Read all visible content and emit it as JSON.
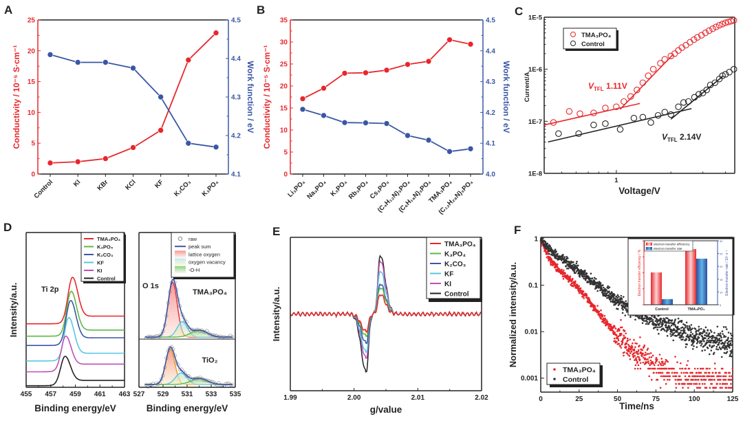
{
  "chart_data": [
    {
      "panel": "A",
      "type": "line",
      "categories": [
        "Control",
        "KI",
        "KBr",
        "KCl",
        "KF",
        "K₂CO₃",
        "K₃PO₄"
      ],
      "ylabel": "Conductivity / 10⁻⁵ S·cm⁻¹",
      "ylim": [
        0,
        25
      ],
      "yticks": [
        "0",
        "5",
        "10",
        "15",
        "20",
        "25"
      ],
      "y2label": "Work function / eV",
      "y2lim": [
        4.1,
        4.5
      ],
      "y2ticks": [
        "4.1",
        "4.2",
        "4.3",
        "4.4",
        "4.5"
      ],
      "series": [
        {
          "axis": "left",
          "color": "#e8262b",
          "values": [
            1.8,
            2.0,
            2.5,
            4.3,
            7.1,
            18.5,
            22.9
          ]
        },
        {
          "axis": "right",
          "color": "#3a56a5",
          "values": [
            4.41,
            4.39,
            4.39,
            4.375,
            4.3,
            4.18,
            4.17
          ]
        }
      ]
    },
    {
      "panel": "B",
      "type": "line",
      "categories": [
        "Li₃PO₄",
        "Na₃PO₄",
        "K₃PO₄",
        "Rb₃PO₄",
        "Cs₃PO₄",
        "(C₄H₁₂N)₃PO₄",
        "(C₆H₁₆N)₃PO₄",
        "TMA₃PO₄",
        "(C₁₂H₂₈N)₃PO₄"
      ],
      "ylabel": "Conductivity / 10⁻⁵ S·cm⁻¹",
      "ylim": [
        0,
        35
      ],
      "yticks": [
        "0",
        "5",
        "10",
        "15",
        "20",
        "25",
        "30",
        "35"
      ],
      "y2label": "Work function / eV",
      "y2lim": [
        4.0,
        4.5
      ],
      "y2ticks": [
        "4.0",
        "4.1",
        "4.2",
        "4.3",
        "4.4",
        "4.5"
      ],
      "series": [
        {
          "axis": "left",
          "color": "#e8262b",
          "values": [
            17.1,
            19.5,
            22.9,
            23.0,
            23.6,
            24.9,
            25.6,
            30.5,
            29.5
          ]
        },
        {
          "axis": "right",
          "color": "#3a56a5",
          "values": [
            4.21,
            4.19,
            4.167,
            4.166,
            4.164,
            4.125,
            4.11,
            4.073,
            4.082
          ]
        }
      ]
    },
    {
      "panel": "C",
      "type": "scatter",
      "xscale": "log",
      "yscale": "log",
      "xlabel": "Voltage/V",
      "ylabel": "Current/A",
      "xlim": [
        0.4,
        4.5
      ],
      "xticks": [
        "1"
      ],
      "ylim": [
        1e-08,
        1e-05
      ],
      "yticks": [
        "1E-8",
        "1E-7",
        "1E-6",
        "1E-5"
      ],
      "legend_position": "top-left",
      "series": [
        {
          "name": "TMA₃PO₄",
          "color": "#e8262b",
          "x": [
            0.45,
            0.55,
            0.63,
            0.75,
            0.87,
            1.0,
            1.1,
            1.2,
            1.3,
            1.4,
            1.5,
            1.6,
            1.75,
            1.85,
            2.0,
            2.1,
            2.2,
            2.3,
            2.42,
            2.55,
            2.68,
            2.8,
            2.95,
            3.1,
            3.25,
            3.4,
            3.55,
            3.7,
            3.85,
            4.0,
            4.15,
            4.3,
            4.45
          ],
          "y": [
            9.5e-08,
            1.55e-07,
            1.4e-07,
            1.45e-07,
            1.8e-07,
            1.9e-07,
            2.4e-07,
            3e-07,
            4e-07,
            5.5e-07,
            7.5e-07,
            1e-06,
            1.3e-06,
            1.55e-06,
            1.8e-06,
            2e-06,
            2.3e-06,
            2.6e-06,
            2.9e-06,
            3.3e-06,
            3.7e-06,
            4.1e-06,
            4.5e-06,
            5e-06,
            5.5e-06,
            6e-06,
            6.5e-06,
            7e-06,
            7.4e-06,
            7.8e-06,
            8.1e-06,
            8.4e-06,
            8.7e-06
          ]
        },
        {
          "name": "Control",
          "color": "#222222",
          "x": [
            0.48,
            0.62,
            0.75,
            0.87,
            1.05,
            1.25,
            1.4,
            1.55,
            1.7,
            1.85,
            2.0,
            2.2,
            2.35,
            2.5,
            2.7,
            2.85,
            3.0,
            3.15,
            3.3,
            3.5,
            3.7,
            3.85,
            4.0,
            4.2,
            4.45
          ],
          "y": [
            5.8e-08,
            5.8e-08,
            8.5e-08,
            9e-08,
            7e-08,
            1.15e-07,
            1.2e-07,
            9.5e-08,
            1.3e-07,
            1.5e-07,
            1.35e-07,
            1.9e-07,
            2.3e-07,
            2.4e-07,
            2.9e-07,
            3.3e-07,
            3.5e-07,
            4e-07,
            5e-07,
            5.5e-07,
            6.5e-07,
            7.5e-07,
            8e-07,
            8.8e-07,
            1e-06
          ]
        }
      ],
      "fits": [
        {
          "color": "#e8262b",
          "x": [
            0.4,
            1.35
          ],
          "y": [
            8.5e-08,
            2.2e-07
          ]
        },
        {
          "color": "#e8262b",
          "x": [
            1.05,
            2.05
          ],
          "y": [
            1.7e-07,
            1.9e-06
          ]
        },
        {
          "color": "#222222",
          "x": [
            0.42,
            2.6
          ],
          "y": [
            4e-08,
            1.75e-07
          ]
        },
        {
          "color": "#222222",
          "x": [
            2.0,
            3.9
          ],
          "y": [
            1.1e-07,
            7.5e-07
          ]
        }
      ],
      "annotations": [
        {
          "v": "V",
          "sub": "TFL",
          "val": " 1.11V",
          "color": "#e8262b"
        },
        {
          "v": "V",
          "sub": "TFL",
          "val": " 2.14V",
          "color": "#222222"
        }
      ]
    },
    {
      "panel": "D",
      "type": "line",
      "title": "Ti 2p",
      "xlabel": "Binding energy/eV",
      "ylabel": "Intensity/a.u.",
      "xlim": [
        455,
        463
      ],
      "xticks": [
        "455",
        "457",
        "459",
        "461",
        "463"
      ],
      "legend_position": "top-right",
      "series": [
        {
          "name": "TMA₃PO₄",
          "color": "#e8262b",
          "center": 458.75,
          "baseline_start": 41,
          "baseline_end": 46,
          "peak_intensity": 71
        },
        {
          "name": "K₃PO₄",
          "color": "#5bb947",
          "center": 458.65,
          "baseline_start": 33,
          "baseline_end": 37,
          "peak_intensity": 62
        },
        {
          "name": "K₂CO₃",
          "color": "#3a56a5",
          "center": 458.6,
          "baseline_start": 27,
          "baseline_end": 32,
          "peak_intensity": 56
        },
        {
          "name": "KF",
          "color": "#55c7e0",
          "center": 458.45,
          "baseline_start": 17,
          "baseline_end": 22,
          "peak_intensity": 45
        },
        {
          "name": "KI",
          "color": "#c04fb4",
          "center": 458.2,
          "baseline_start": 10,
          "baseline_end": 15,
          "peak_intensity": 33
        },
        {
          "name": "Control",
          "color": "#222222",
          "center": 458.15,
          "baseline_start": 1,
          "baseline_end": 4.5,
          "peak_intensity": 20
        }
      ]
    },
    {
      "panel": "",
      "type": "area",
      "title": "O 1s",
      "xlabel": "Binding energy/eV",
      "xlim": [
        527,
        535
      ],
      "xticks": [
        "527",
        "529",
        "531",
        "533",
        "535"
      ],
      "legend": [
        "raw",
        "peak sum",
        "lattice oxygen",
        "oxygen vacancy",
        "-O-H"
      ],
      "legend_position": "top-right",
      "spectra": [
        {
          "label": "TMA₃PO₄",
          "baseline": 32.4,
          "components": [
            {
              "name": "lattice oxygen",
              "color": "#e8262b",
              "center": 529.8,
              "height": 35.5,
              "fwhm": 0.9
            },
            {
              "name": "oxygen vacancy",
              "color": "#55c7e0",
              "center": 530.6,
              "height": 10,
              "fwhm": 1.0
            },
            {
              "name": "-O-H",
              "color": "#5bb947",
              "center": 532.0,
              "height": 4.5,
              "fwhm": 1.6
            }
          ]
        },
        {
          "label": "TiO₂",
          "baseline": 1.8,
          "components": [
            {
              "name": "lattice oxygen",
              "color": "#f7941d",
              "center": 529.6,
              "height": 23,
              "fwhm": 0.9
            },
            {
              "name": "oxygen vacancy",
              "color": "#55c7e0",
              "center": 530.5,
              "height": 7.5,
              "fwhm": 1.1
            },
            {
              "name": "-O-H",
              "color": "#5bb947",
              "center": 532.0,
              "height": 4,
              "fwhm": 1.6
            }
          ]
        }
      ],
      "peak_sum_color": "#3a56a5"
    },
    {
      "panel": "E",
      "type": "line",
      "xlabel": "g/value",
      "ylabel": "Intensity/a.u.",
      "xlim": [
        1.99,
        2.02
      ],
      "xticks": [
        "1.99",
        "2.00",
        "2.01",
        "2.02"
      ],
      "ylim": [
        -1,
        1
      ],
      "legend_position": "top-right",
      "series": [
        {
          "name": "TMA₃PO₄",
          "color": "#e8262b",
          "positive_peak": 0.26,
          "negative_peak": -0.23
        },
        {
          "name": "K₃PO₄",
          "color": "#5bb947",
          "positive_peak": 0.35,
          "negative_peak": -0.29
        },
        {
          "name": "K₂CO₃",
          "color": "#3a56a5",
          "positive_peak": 0.4,
          "negative_peak": -0.38
        },
        {
          "name": "KF",
          "color": "#55c7e0",
          "positive_peak": 0.57,
          "negative_peak": -0.5
        },
        {
          "name": "KI",
          "color": "#c04fb4",
          "positive_peak": 0.7,
          "negative_peak": -0.58
        },
        {
          "name": "Control",
          "color": "#222222",
          "positive_peak": 0.77,
          "negative_peak": -0.76
        }
      ],
      "positive_peak_g": 2.0041,
      "negative_peak_g": 2.0019
    },
    {
      "panel": "F",
      "type": "scatter",
      "yscale": "log",
      "xlabel": "Time/ns",
      "ylabel": "Normalized intensity/a.u.",
      "xlim": [
        0,
        125
      ],
      "xticks": [
        "0",
        "25",
        "50",
        "75",
        "100",
        "125"
      ],
      "ylim": [
        0.0005,
        1
      ],
      "yticks": [
        "0.001",
        "0.01",
        "0.1",
        "1"
      ],
      "legend_position": "bottom-left",
      "series": [
        {
          "name": "TMA₃PO₄",
          "color": "#e8262b",
          "t": [
            0,
            5,
            10,
            25,
            40,
            50,
            75,
            100,
            125
          ],
          "y": [
            1,
            0.4,
            0.25,
            0.085,
            0.02,
            0.008,
            0.0015,
            0.001,
            0.001
          ]
        },
        {
          "name": "Control",
          "color": "#333333",
          "t": [
            0,
            5,
            10,
            25,
            50,
            75,
            100,
            125
          ],
          "y": [
            1,
            0.6,
            0.45,
            0.2,
            0.045,
            0.017,
            0.008,
            0.005
          ]
        }
      ]
    },
    {
      "panel": "",
      "type": "bar",
      "inset_of": "F",
      "categories": [
        "Control",
        "TMA₃PO₄"
      ],
      "ylabel": "Electron transfer efficiency / %",
      "ylim": [
        80,
        100
      ],
      "y2label": "Electron transfer rate / 10⁷ s⁻¹",
      "y2lim": [
        5,
        30
      ],
      "y2ticks": [
        "5",
        "10",
        "15",
        "20",
        "25",
        "30"
      ],
      "series": [
        {
          "name": "electron transfer efficiency",
          "axis": "left",
          "color": "#e8262b",
          "values": [
            90.1,
            97.4
          ]
        },
        {
          "name": "electron transfer rate",
          "axis": "right",
          "color": "#2f6db5",
          "values": [
            7.2,
            23.0
          ]
        }
      ]
    }
  ]
}
